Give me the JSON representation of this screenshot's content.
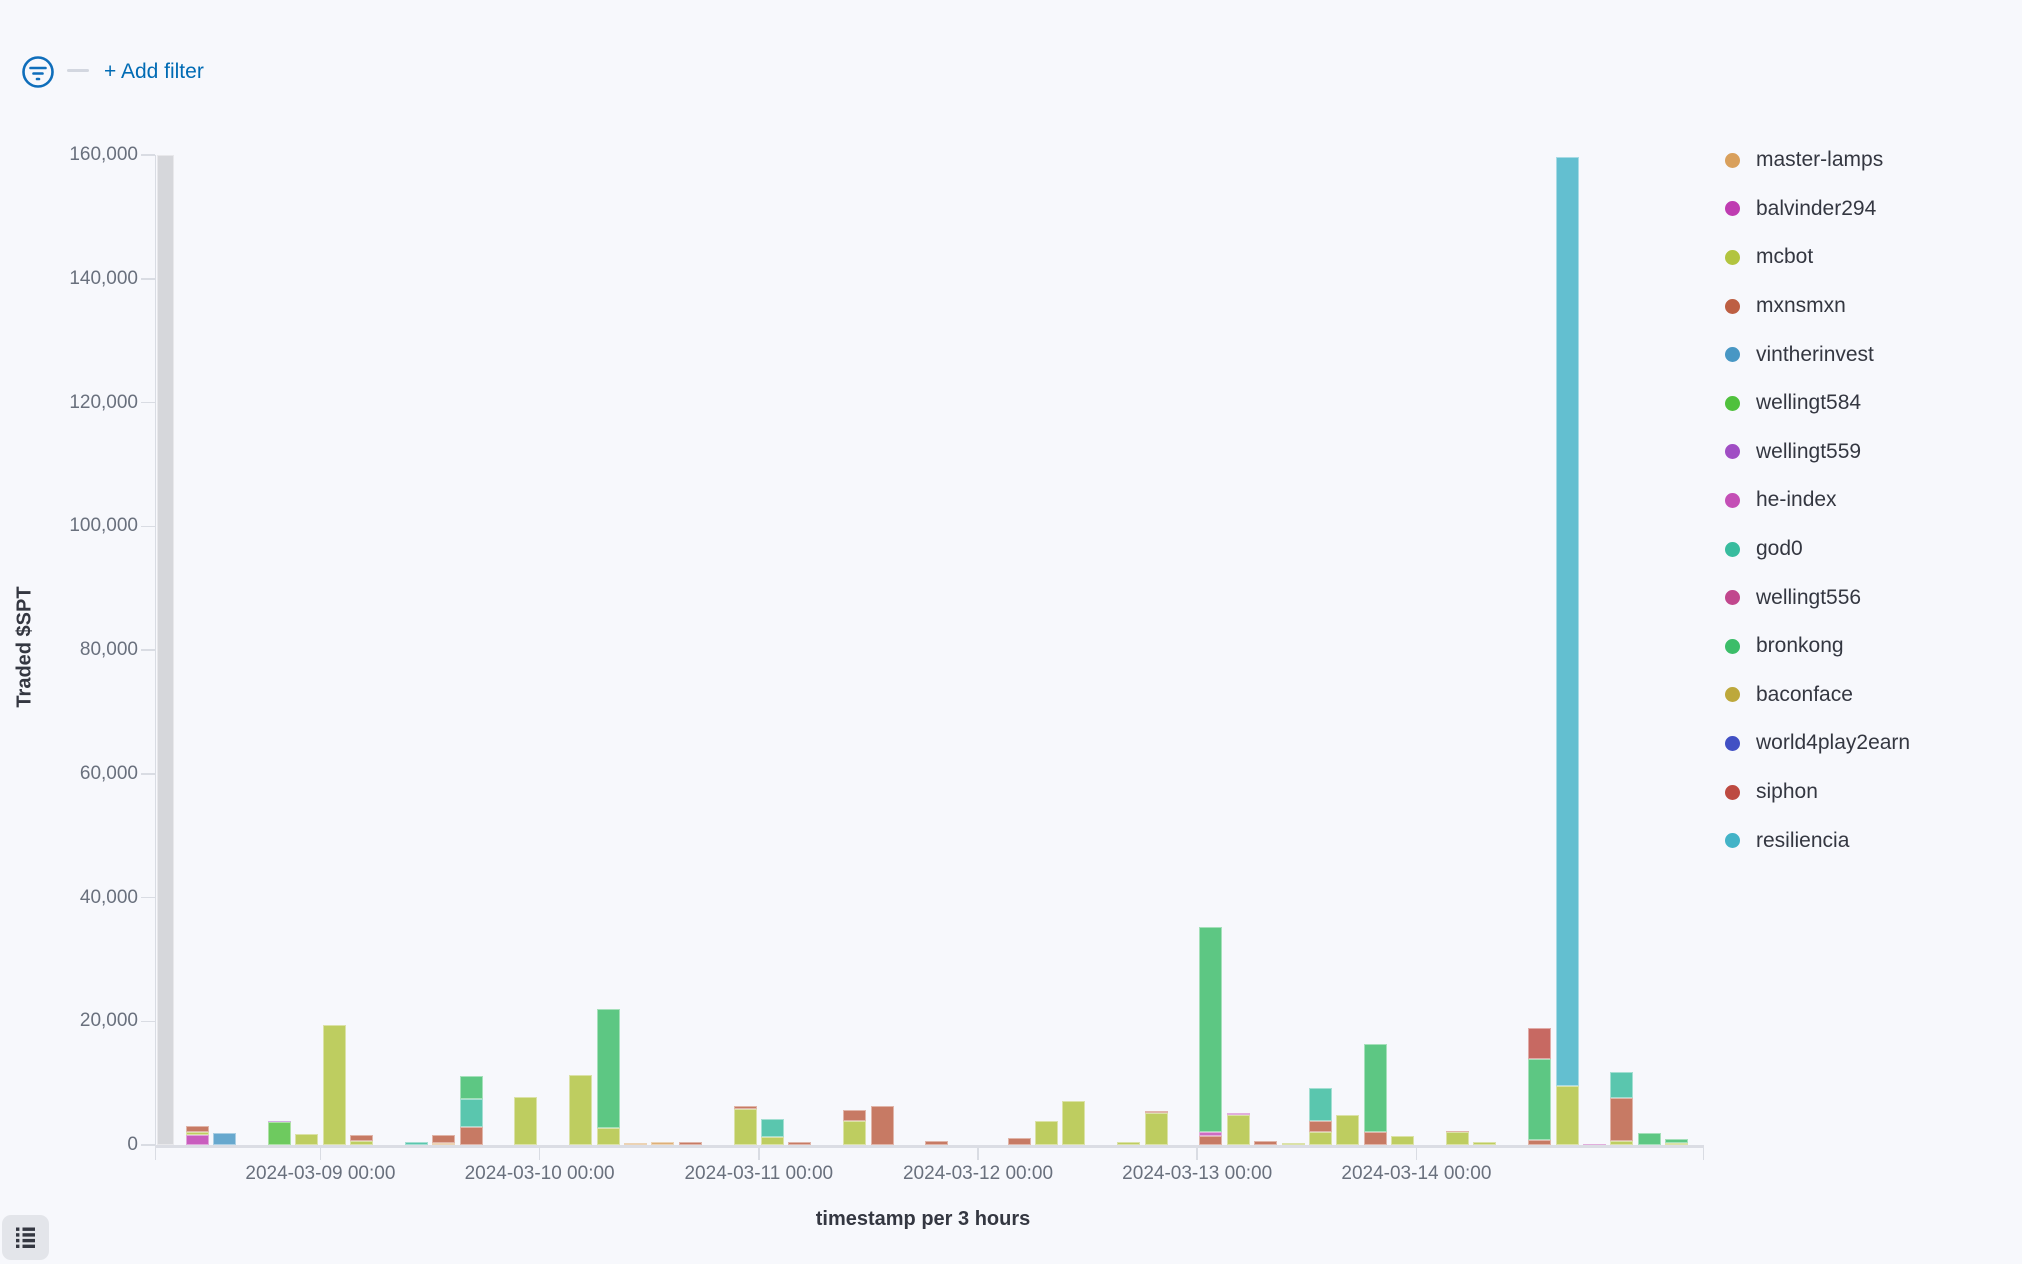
{
  "app": {
    "background": "#f7f8fc"
  },
  "toolbar": {
    "filter_icon": "filter-circle-icon",
    "filter_icon_color": "#0f6ebb",
    "add_filter_label": "+ Add filter",
    "link_color": "#006bb4"
  },
  "footer": {
    "legend_toggle_icon": "list-icon"
  },
  "chart_data": {
    "type": "bar",
    "stacked": true,
    "title": "",
    "xlabel": "timestamp per 3 hours",
    "ylabel": "Traded $SPT",
    "ylim": [
      0,
      160000
    ],
    "grid": false,
    "legend_position": "right",
    "y_ticks": [
      0,
      20000,
      40000,
      60000,
      80000,
      100000,
      120000,
      140000,
      160000
    ],
    "y_tick_labels": [
      "0",
      "20,000",
      "40,000",
      "60,000",
      "80,000",
      "100,000",
      "120,000",
      "140,000",
      "160,000"
    ],
    "x_tick_labels": [
      "2024-03-09 00:00",
      "2024-03-10 00:00",
      "2024-03-11 00:00",
      "2024-03-12 00:00",
      "2024-03-13 00:00",
      "2024-03-14 00:00"
    ],
    "bucket_hours": 3,
    "domain_start": "2024-03-08 06:00",
    "total_slots": 56,
    "first_labeled_slot": 6,
    "slots_per_day": 8,
    "series_legend": [
      {
        "name": "master-lamps",
        "color": "#d9a05c"
      },
      {
        "name": "balvinder294",
        "color": "#bf3cb1"
      },
      {
        "name": "mcbot",
        "color": "#b2c43f"
      },
      {
        "name": "mxnsmxn",
        "color": "#bd5f43"
      },
      {
        "name": "vintherinvest",
        "color": "#4897c4"
      },
      {
        "name": "wellingt584",
        "color": "#50c13d"
      },
      {
        "name": "wellingt559",
        "color": "#a04ec4"
      },
      {
        "name": "he-index",
        "color": "#c44fb6"
      },
      {
        "name": "god0",
        "color": "#38bc9e"
      },
      {
        "name": "wellingt556",
        "color": "#c1478d"
      },
      {
        "name": "bronkong",
        "color": "#3cbd69"
      },
      {
        "name": "baconface",
        "color": "#bda83c"
      },
      {
        "name": "world4play2earn",
        "color": "#4150c4"
      },
      {
        "name": "siphon",
        "color": "#bd4a41"
      },
      {
        "name": "resiliencia",
        "color": "#43b3c7"
      }
    ],
    "clipped_partial_bar": {
      "slot": 0,
      "time": "2024-03-08 06:00",
      "color": "#cfcfd4",
      "note": "partial bucket clipped at chart top",
      "min_value": 160000
    },
    "bars": [
      {
        "slot": 1,
        "time": "2024-03-08 09:00",
        "segments": [
          [
            "balvinder294",
            1600
          ],
          [
            "mcbot",
            550
          ],
          [
            "mxnsmxn",
            850
          ]
        ]
      },
      {
        "slot": 2,
        "time": "2024-03-08 12:00",
        "segments": [
          [
            "vintherinvest",
            1950
          ]
        ]
      },
      {
        "slot": 4,
        "time": "2024-03-08 18:00",
        "segments": [
          [
            "wellingt584",
            3650
          ],
          [
            "wellingt559",
            270
          ]
        ]
      },
      {
        "slot": 5,
        "time": "2024-03-08 21:00",
        "segments": [
          [
            "mcbot",
            1700
          ]
        ]
      },
      {
        "slot": 6,
        "time": "2024-03-09 00:00",
        "segments": [
          [
            "mcbot",
            19400
          ]
        ]
      },
      {
        "slot": 7,
        "time": "2024-03-09 03:00",
        "segments": [
          [
            "mcbot",
            700
          ],
          [
            "mxnsmxn",
            850
          ]
        ]
      },
      {
        "slot": 9,
        "time": "2024-03-09 09:00",
        "segments": [
          [
            "god0",
            430
          ]
        ]
      },
      {
        "slot": 10,
        "time": "2024-03-09 12:00",
        "segments": [
          [
            "master-lamps",
            320
          ],
          [
            "mxnsmxn",
            1250
          ]
        ]
      },
      {
        "slot": 11,
        "time": "2024-03-09 15:00",
        "segments": [
          [
            "mxnsmxn",
            2950
          ],
          [
            "god0",
            4450
          ],
          [
            "bronkong",
            3800
          ]
        ]
      },
      {
        "slot": 13,
        "time": "2024-03-09 21:00",
        "segments": [
          [
            "mcbot",
            7700
          ]
        ]
      },
      {
        "slot": 15,
        "time": "2024-03-10 03:00",
        "segments": [
          [
            "mcbot",
            11350
          ]
        ]
      },
      {
        "slot": 16,
        "time": "2024-03-10 06:00",
        "segments": [
          [
            "mcbot",
            2750
          ],
          [
            "bronkong",
            19200
          ]
        ]
      },
      {
        "slot": 17,
        "time": "2024-03-10 09:00",
        "segments": [
          [
            "master-lamps",
            250
          ]
        ]
      },
      {
        "slot": 18,
        "time": "2024-03-10 12:00",
        "segments": [
          [
            "master-lamps",
            550
          ]
        ]
      },
      {
        "slot": 19,
        "time": "2024-03-10 15:00",
        "segments": [
          [
            "mxnsmxn",
            430
          ]
        ]
      },
      {
        "slot": 21,
        "time": "2024-03-10 21:00",
        "segments": [
          [
            "mcbot",
            5800
          ],
          [
            "mxnsmxn",
            550
          ]
        ]
      },
      {
        "slot": 22,
        "time": "2024-03-11 00:00",
        "segments": [
          [
            "mcbot",
            1250
          ],
          [
            "god0",
            2950
          ]
        ]
      },
      {
        "slot": 23,
        "time": "2024-03-11 03:00",
        "segments": [
          [
            "mxnsmxn",
            550
          ]
        ]
      },
      {
        "slot": 25,
        "time": "2024-03-11 09:00",
        "segments": [
          [
            "mcbot",
            3800
          ],
          [
            "mxnsmxn",
            1800
          ]
        ]
      },
      {
        "slot": 26,
        "time": "2024-03-11 12:00",
        "segments": [
          [
            "mxnsmxn",
            6250
          ]
        ]
      },
      {
        "slot": 28,
        "time": "2024-03-11 18:00",
        "segments": [
          [
            "mxnsmxn",
            600
          ]
        ]
      },
      {
        "slot": 31,
        "time": "2024-03-12 03:00",
        "segments": [
          [
            "mxnsmxn",
            1100
          ]
        ]
      },
      {
        "slot": 32,
        "time": "2024-03-12 06:00",
        "segments": [
          [
            "mcbot",
            3950
          ]
        ]
      },
      {
        "slot": 33,
        "time": "2024-03-12 09:00",
        "segments": [
          [
            "mcbot",
            7150
          ]
        ]
      },
      {
        "slot": 35,
        "time": "2024-03-12 15:00",
        "segments": [
          [
            "mcbot",
            430
          ]
        ]
      },
      {
        "slot": 36,
        "time": "2024-03-12 18:00",
        "segments": [
          [
            "mcbot",
            5100
          ],
          [
            "mxnsmxn",
            380
          ]
        ]
      },
      {
        "slot": 38,
        "time": "2024-03-13 00:00",
        "segments": [
          [
            "mxnsmxn",
            1500
          ],
          [
            "he-index",
            550
          ],
          [
            "bronkong",
            33200
          ]
        ]
      },
      {
        "slot": 39,
        "time": "2024-03-13 03:00",
        "segments": [
          [
            "mcbot",
            4850
          ],
          [
            "he-index",
            380
          ]
        ]
      },
      {
        "slot": 40,
        "time": "2024-03-13 06:00",
        "segments": [
          [
            "mxnsmxn",
            600
          ]
        ]
      },
      {
        "slot": 41,
        "time": "2024-03-13 09:00",
        "segments": [
          [
            "mcbot",
            400
          ]
        ]
      },
      {
        "slot": 42,
        "time": "2024-03-13 12:00",
        "segments": [
          [
            "mcbot",
            2050
          ],
          [
            "mxnsmxn",
            1750
          ],
          [
            "god0",
            5400
          ]
        ]
      },
      {
        "slot": 43,
        "time": "2024-03-13 15:00",
        "segments": [
          [
            "mcbot",
            4900
          ]
        ]
      },
      {
        "slot": 44,
        "time": "2024-03-13 18:00",
        "segments": [
          [
            "mxnsmxn",
            2050
          ],
          [
            "bronkong",
            14200
          ]
        ]
      },
      {
        "slot": 45,
        "time": "2024-03-13 21:00",
        "segments": [
          [
            "mcbot",
            1500
          ]
        ]
      },
      {
        "slot": 47,
        "time": "2024-03-14 03:00",
        "segments": [
          [
            "mcbot",
            2050
          ],
          [
            "mxnsmxn",
            170
          ]
        ]
      },
      {
        "slot": 48,
        "time": "2024-03-14 06:00",
        "segments": [
          [
            "mcbot",
            550
          ]
        ]
      },
      {
        "slot": 50,
        "time": "2024-03-14 12:00",
        "segments": [
          [
            "mxnsmxn",
            800
          ],
          [
            "bronkong",
            13050
          ],
          [
            "siphon",
            5050
          ]
        ]
      },
      {
        "slot": 51,
        "time": "2024-03-14 15:00",
        "segments": [
          [
            "mcbot",
            9600
          ],
          [
            "resiliencia",
            150000
          ]
        ]
      },
      {
        "slot": 52,
        "time": "2024-03-14 18:00",
        "segments": [
          [
            "he-index",
            150
          ]
        ]
      },
      {
        "slot": 53,
        "time": "2024-03-14 21:00",
        "segments": [
          [
            "mcbot",
            700
          ],
          [
            "mxnsmxn",
            6900
          ],
          [
            "god0",
            4250
          ]
        ]
      },
      {
        "slot": 54,
        "time": "2024-03-15 00:00",
        "segments": [
          [
            "bronkong",
            1900
          ]
        ]
      },
      {
        "slot": 55,
        "time": "2024-03-15 03:00",
        "segments": [
          [
            "mcbot",
            400
          ],
          [
            "bronkong",
            600
          ]
        ]
      }
    ]
  }
}
